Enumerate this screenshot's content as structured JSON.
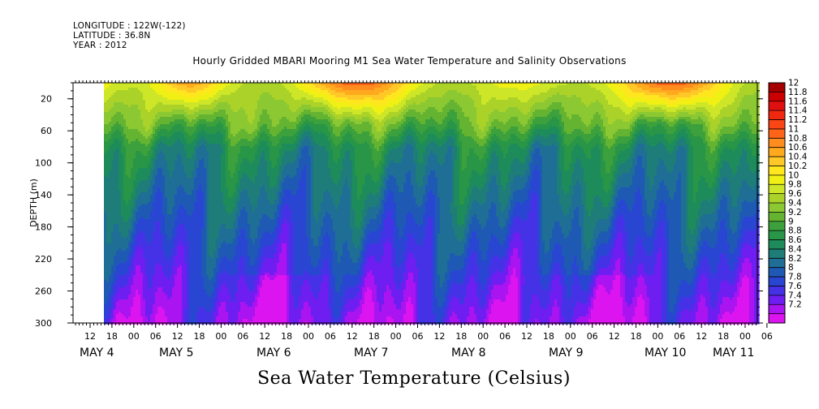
{
  "header": {
    "longitude": "LONGITUDE : 122W(-122)",
    "latitude": "LATITUDE : 36.8N",
    "year": "YEAR : 2012"
  },
  "footer_label": "Sea Water Temperature (Celsius)",
  "chart_data": {
    "type": "heatmap",
    "title": "Hourly Gridded MBARI Mooring M1 Sea Water Temperature and Salinity Observations",
    "xlabel": "",
    "ylabel": "DEPTH (m)",
    "ylim": [
      300,
      0
    ],
    "y_reversed": true,
    "y_ticks": [
      20,
      60,
      100,
      140,
      180,
      220,
      260,
      300
    ],
    "x_hour_ticks": [
      "12",
      "18",
      "00",
      "06",
      "12",
      "18",
      "00",
      "06",
      "12",
      "18",
      "00",
      "06",
      "12",
      "18",
      "00",
      "06",
      "12",
      "18",
      "00",
      "06",
      "12",
      "18",
      "00",
      "06",
      "12",
      "18",
      "00",
      "06",
      "12",
      "18",
      "00",
      "06"
    ],
    "x_day_labels": [
      "MAY  4",
      "MAY  5",
      "MAY  6",
      "MAY  7",
      "MAY  8",
      "MAY  9",
      "MAY 10",
      "MAY 11"
    ],
    "colorbar_levels": [
      12,
      11.8,
      11.6,
      11.4,
      11.2,
      11,
      10.8,
      10.6,
      10.4,
      10.2,
      10,
      9.8,
      9.6,
      9.4,
      9.2,
      9,
      8.8,
      8.6,
      8.4,
      8.2,
      8,
      7.8,
      7.6,
      7.4,
      7.2
    ],
    "colorbar_colors": [
      "#a50000",
      "#cc0000",
      "#e01010",
      "#f02810",
      "#fa4614",
      "#ff6418",
      "#ff8c1e",
      "#ffaa1e",
      "#ffc828",
      "#ffe61e",
      "#f0f014",
      "#cde628",
      "#aad228",
      "#8cc832",
      "#64b432",
      "#3ca03c",
      "#289646",
      "#1e8c5a",
      "#1e7d78",
      "#1e6e96",
      "#1e5ab4",
      "#2846d2",
      "#4632e6",
      "#6e1ef0",
      "#aa14f0",
      "#dc14f0"
    ],
    "notes": "Heatmap of temperature (Celsius) versus time (May 4-11, 2012) and depth (0-300 m). Warmest water (10-12 C) near surface, cooling to about 7.2-7.6 C at 300 m."
  }
}
